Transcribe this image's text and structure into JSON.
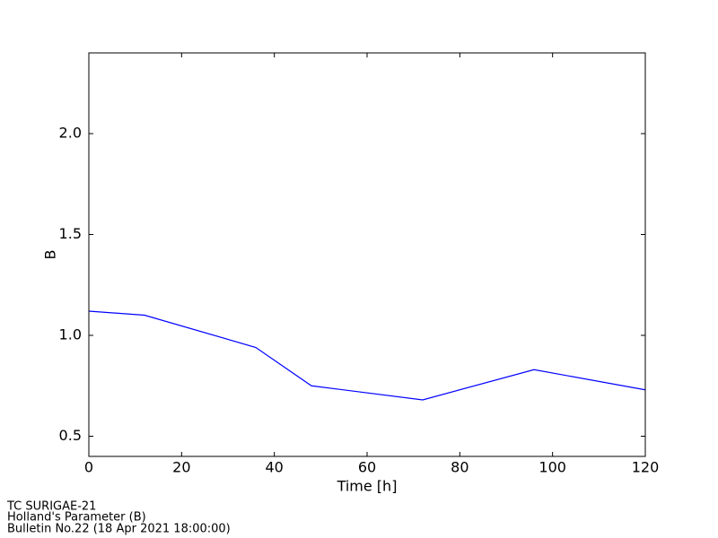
{
  "chart_data": {
    "type": "line",
    "x_label": "Time [h]",
    "y_label": "B",
    "x": [
      0,
      12,
      36,
      48,
      72,
      96,
      120
    ],
    "series": [
      {
        "name": "B",
        "color": "#0000ff",
        "values": [
          1.12,
          1.1,
          0.94,
          0.75,
          0.68,
          0.83,
          0.73
        ]
      }
    ],
    "xlim": [
      0,
      120
    ],
    "xticks": [
      0,
      20,
      40,
      60,
      80,
      100,
      120
    ],
    "ylim": [
      0.4,
      2.4
    ],
    "yticks": [
      0.5,
      {
        "value": 1,
        "label": "1.0"
      },
      1.5,
      {
        "value": 2,
        "label": "2.0"
      }
    ]
  },
  "footer": [
    "TC SURIGAE-21",
    "Holland's Parameter (B)",
    "Bulletin No.22 (18 Apr 2021  18:00:00)"
  ]
}
